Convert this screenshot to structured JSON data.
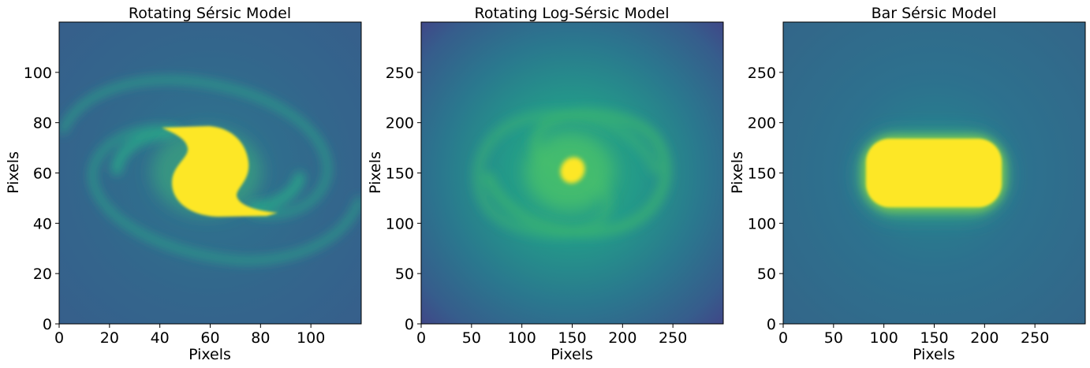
{
  "chart_data": [
    {
      "type": "heatmap",
      "title": "Rotating Sérsic Model",
      "xlabel": "Pixels",
      "ylabel": "Pixels",
      "xlim": [
        0,
        120
      ],
      "ylim": [
        0,
        120
      ],
      "xticks": [
        0,
        20,
        40,
        60,
        80,
        100
      ],
      "yticks": [
        0,
        20,
        40,
        60,
        80,
        100
      ],
      "colormap": "viridis",
      "features": "two-armed spiral with saturated S-shaped core",
      "colors": {
        "background": "#35628a",
        "arms": "#27a88a",
        "core": "#fde725"
      }
    },
    {
      "type": "heatmap",
      "title": "Rotating Log-Sérsic Model",
      "xlabel": "Pixels",
      "ylabel": "Pixels",
      "xlim": [
        0,
        300
      ],
      "ylim": [
        0,
        300
      ],
      "xticks": [
        0,
        50,
        100,
        150,
        200,
        250
      ],
      "yticks": [
        0,
        50,
        100,
        150,
        200,
        250
      ],
      "colormap": "viridis",
      "features": "spiral galaxy with bright compact nucleus near (150,150)",
      "colors": {
        "background": "#3a4d8a",
        "arms": "#3cba70",
        "core": "#fde725"
      }
    },
    {
      "type": "heatmap",
      "title": "Bar Sérsic Model",
      "xlabel": "Pixels",
      "ylabel": "Pixels",
      "xlim": [
        0,
        300
      ],
      "ylim": [
        0,
        300
      ],
      "xticks": [
        0,
        50,
        100,
        150,
        200,
        250
      ],
      "yticks": [
        0,
        50,
        100,
        150,
        200,
        250
      ],
      "colormap": "viridis",
      "features": "saturated rounded rectangular bar spanning x≈82–218, y≈117–185",
      "colors": {
        "background": "#2f6c8e",
        "halo": "#26888f",
        "core": "#fde725"
      }
    }
  ]
}
